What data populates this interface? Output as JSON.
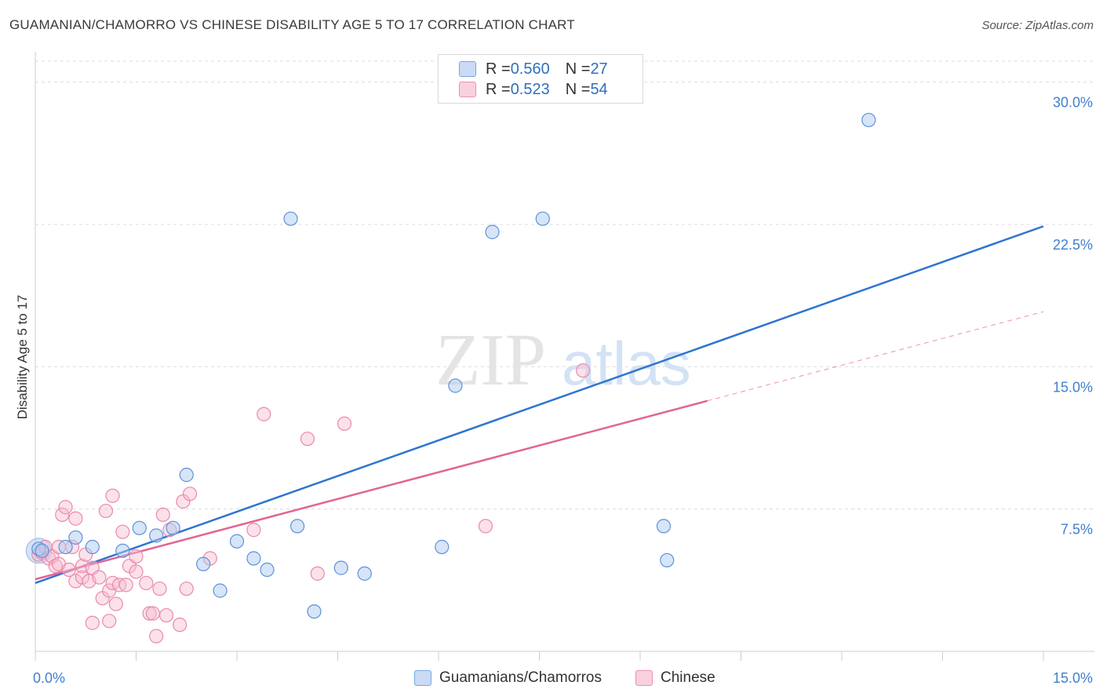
{
  "header": {
    "title": "GUAMANIAN/CHAMORRO VS CHINESE DISABILITY AGE 5 TO 17 CORRELATION CHART",
    "source": "Source: ZipAtlas.com"
  },
  "watermark": {
    "zip": "ZIP",
    "atlas": "atlas"
  },
  "colors": {
    "blue": "#2f74d0",
    "blue_fill": "#aecbf0",
    "pink": "#e36492",
    "pink_fill": "#f7bcd0",
    "tick_label": "#3f7fcf",
    "grid": "#dcdcdc"
  },
  "legend_top": {
    "rows": [
      {
        "r_label": "R = ",
        "r_value": "0.560",
        "n_label": "N = ",
        "n_value": "27"
      },
      {
        "r_label": "R = ",
        "r_value": "0.523",
        "n_label": "N = ",
        "n_value": "54"
      }
    ]
  },
  "legend_bottom": {
    "items": [
      {
        "label": "Guamanians/Chamorros"
      },
      {
        "label": "Chinese"
      }
    ]
  },
  "chart_data": {
    "type": "scatter",
    "title": "GUAMANIAN/CHAMORRO VS CHINESE DISABILITY AGE 5 TO 17 CORRELATION CHART",
    "ylabel": "Disability Age 5 to 17",
    "xlabel": "",
    "xlim": [
      0,
      15
    ],
    "ylim": [
      0,
      31.1
    ],
    "x_tick_labels": [
      "0.0%",
      "15.0%"
    ],
    "y_ticks": [
      7.5,
      15.0,
      22.5,
      30.0
    ],
    "y_tick_labels": [
      "7.5%",
      "15.0%",
      "22.5%",
      "30.0%"
    ],
    "grid": true,
    "series": [
      {
        "name": "Guamanians/Chamorros",
        "color": "#2f74d0",
        "points": [
          [
            0.05,
            5.4
          ],
          [
            0.1,
            5.3
          ],
          [
            0.45,
            5.5
          ],
          [
            0.6,
            6.0
          ],
          [
            0.85,
            5.5
          ],
          [
            1.3,
            5.3
          ],
          [
            1.55,
            6.5
          ],
          [
            1.8,
            6.1
          ],
          [
            2.05,
            6.5
          ],
          [
            2.25,
            9.3
          ],
          [
            2.5,
            4.6
          ],
          [
            2.75,
            3.2
          ],
          [
            3.0,
            5.8
          ],
          [
            3.25,
            4.9
          ],
          [
            3.45,
            4.3
          ],
          [
            3.8,
            22.8
          ],
          [
            3.9,
            6.6
          ],
          [
            4.15,
            2.1
          ],
          [
            4.55,
            4.4
          ],
          [
            4.9,
            4.1
          ],
          [
            6.05,
            5.5
          ],
          [
            6.25,
            14.0
          ],
          [
            6.8,
            22.1
          ],
          [
            7.55,
            22.8
          ],
          [
            9.35,
            6.6
          ],
          [
            9.4,
            4.8
          ],
          [
            12.4,
            28.0
          ]
        ],
        "trend": [
          [
            0,
            3.6
          ],
          [
            15,
            22.4
          ]
        ]
      },
      {
        "name": "Chinese",
        "color": "#e36492",
        "points": [
          [
            0.05,
            5.1
          ],
          [
            0.1,
            5.2
          ],
          [
            0.15,
            5.5
          ],
          [
            0.2,
            4.9
          ],
          [
            0.25,
            5.0
          ],
          [
            0.3,
            4.5
          ],
          [
            0.35,
            4.6
          ],
          [
            0.35,
            5.5
          ],
          [
            0.4,
            7.2
          ],
          [
            0.45,
            7.6
          ],
          [
            0.5,
            4.3
          ],
          [
            0.55,
            5.5
          ],
          [
            0.6,
            7.0
          ],
          [
            0.6,
            3.7
          ],
          [
            0.7,
            3.9
          ],
          [
            0.7,
            4.5
          ],
          [
            0.75,
            5.1
          ],
          [
            0.8,
            3.7
          ],
          [
            0.85,
            1.5
          ],
          [
            0.85,
            4.4
          ],
          [
            0.95,
            3.9
          ],
          [
            1.0,
            2.8
          ],
          [
            1.05,
            7.4
          ],
          [
            1.1,
            1.6
          ],
          [
            1.1,
            3.2
          ],
          [
            1.15,
            3.6
          ],
          [
            1.15,
            8.2
          ],
          [
            1.2,
            2.5
          ],
          [
            1.25,
            3.5
          ],
          [
            1.3,
            6.3
          ],
          [
            1.35,
            3.5
          ],
          [
            1.4,
            4.5
          ],
          [
            1.5,
            5.0
          ],
          [
            1.5,
            4.2
          ],
          [
            1.65,
            3.6
          ],
          [
            1.7,
            2.0
          ],
          [
            1.75,
            2.0
          ],
          [
            1.8,
            0.8
          ],
          [
            1.85,
            3.3
          ],
          [
            1.9,
            7.2
          ],
          [
            1.95,
            1.9
          ],
          [
            2.0,
            6.4
          ],
          [
            2.15,
            1.4
          ],
          [
            2.2,
            7.9
          ],
          [
            2.25,
            3.3
          ],
          [
            2.3,
            8.3
          ],
          [
            2.6,
            4.9
          ],
          [
            3.25,
            6.4
          ],
          [
            3.4,
            12.5
          ],
          [
            4.05,
            11.2
          ],
          [
            4.2,
            4.1
          ],
          [
            4.6,
            12.0
          ],
          [
            6.7,
            6.6
          ],
          [
            8.15,
            14.8
          ]
        ],
        "trend": [
          [
            0,
            3.8
          ],
          [
            10,
            13.2
          ]
        ],
        "trend_extension": [
          [
            10,
            13.2
          ],
          [
            15,
            17.9
          ]
        ]
      }
    ]
  }
}
